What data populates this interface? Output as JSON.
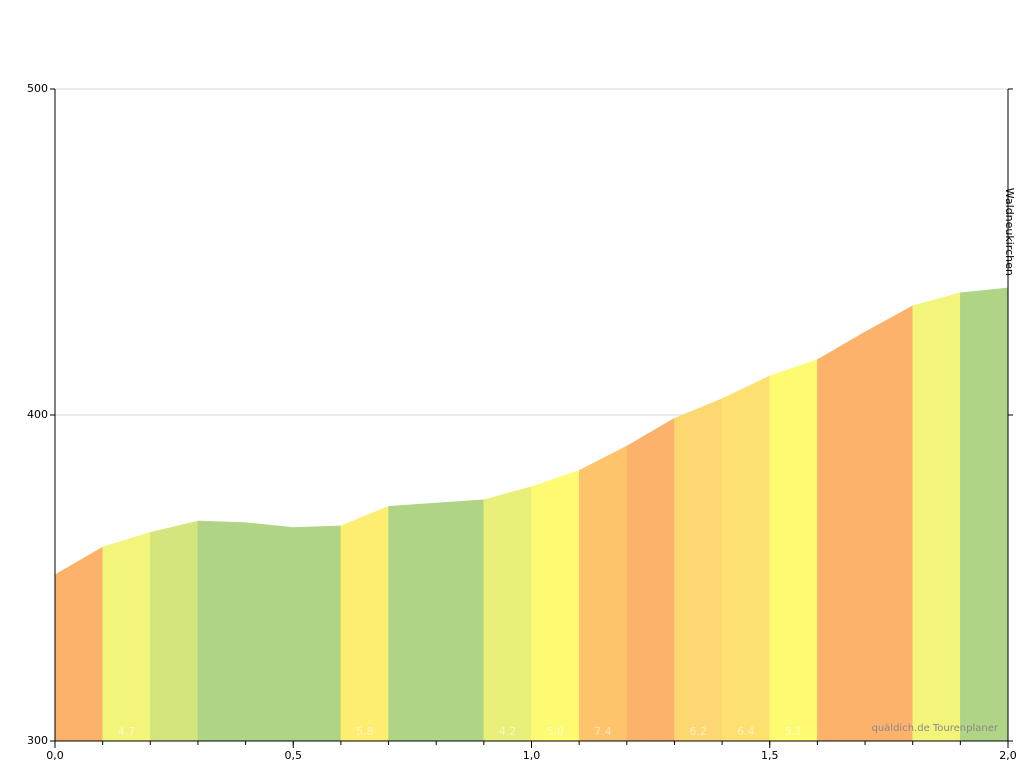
{
  "chart_data": {
    "type": "area",
    "x": [
      0,
      0.1,
      0.2,
      0.3,
      0.4,
      0.5,
      0.6,
      0.7,
      0.8,
      0.9,
      1.0,
      1.1,
      1.2,
      1.3,
      1.4,
      1.5,
      1.6,
      1.7,
      1.8,
      1.9,
      2.0
    ],
    "values": [
      351,
      359.5,
      364,
      367.5,
      367,
      365.5,
      366,
      372,
      373,
      374,
      378,
      383,
      390.5,
      399,
      405,
      412,
      417,
      425.5,
      433.5,
      437.5,
      439
    ],
    "segment_colors": [
      "#fdb26b",
      "#f2f57a",
      "#d4e57e",
      "#afd486",
      "#afd486",
      "#afd486",
      "#fdee71",
      "#afd486",
      "#afd486",
      "#e8f07a",
      "#fefb72",
      "#fdc46c",
      "#fdb26b",
      "#fdd772",
      "#fde06f",
      "#fefb72",
      "#fdb26b",
      "#fdb26b",
      "#f2f57a",
      "#afd486"
    ],
    "segment_labels": [
      null,
      "4.7",
      null,
      null,
      null,
      null,
      "5.8",
      null,
      null,
      "4.2",
      "5.0",
      "7.4",
      null,
      "6.2",
      "6.4",
      "5.1",
      null,
      null,
      null,
      null
    ],
    "xlim": [
      0,
      2
    ],
    "ylim": [
      300,
      500
    ],
    "xticks": [
      {
        "value": 0,
        "label": "0,0"
      },
      {
        "value": 0.5,
        "label": "0,5"
      },
      {
        "value": 1,
        "label": "1,0"
      },
      {
        "value": 1.5,
        "label": "1,5"
      },
      {
        "value": 2,
        "label": "2,0"
      }
    ],
    "yticks": [
      300,
      400,
      500
    ],
    "grid": true,
    "annotation": "Waldneukirchen",
    "watermark": "quäldich.de Tourenplaner"
  }
}
